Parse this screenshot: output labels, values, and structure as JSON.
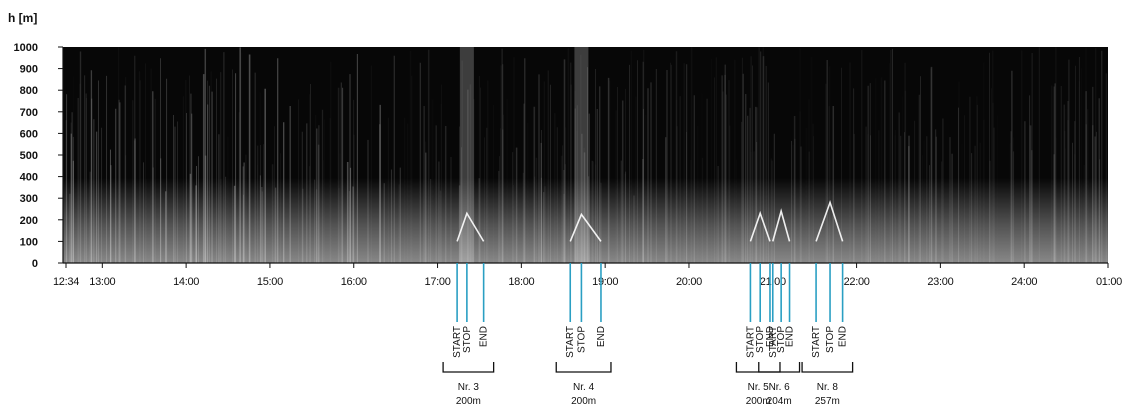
{
  "chart_data": {
    "type": "heatmap",
    "ylabel": "h [m]",
    "ylim": [
      0,
      1000
    ],
    "yticks": [
      "0",
      "100",
      "200",
      "300",
      "400",
      "500",
      "600",
      "700",
      "800",
      "900",
      "1000"
    ],
    "xticks": [
      {
        "label": "12:34",
        "t": 754
      },
      {
        "label": "13:00",
        "t": 780
      },
      {
        "label": "14:00",
        "t": 840
      },
      {
        "label": "15:00",
        "t": 900
      },
      {
        "label": "16:00",
        "t": 960
      },
      {
        "label": "17:00",
        "t": 1020
      },
      {
        "label": "18:00",
        "t": 1080
      },
      {
        "label": "19:00",
        "t": 1140
      },
      {
        "label": "20:00",
        "t": 1200
      },
      {
        "label": "21:00",
        "t": 1260
      },
      {
        "label": "22:00",
        "t": 1320
      },
      {
        "label": "23:00",
        "t": 1380
      },
      {
        "label": "24:00",
        "t": 1440
      },
      {
        "label": "01:00",
        "t": 1500
      }
    ],
    "xlim_minutes": [
      754,
      1500
    ],
    "event_colors": {
      "marker": "#2a9fc3",
      "triangle": "#ffffff",
      "image_bg": "#070707",
      "image_fg": "#ffffff"
    },
    "flights": [
      {
        "name": "Nr. 3",
        "altitude": "200m",
        "start": 1034,
        "stop": 1041,
        "end": 1053,
        "peak_h": 230
      },
      {
        "name": "Nr. 4",
        "altitude": "200m",
        "start": 1115,
        "stop": 1123,
        "end": 1137,
        "peak_h": 225
      },
      {
        "name": "Nr. 5",
        "altitude": "200m",
        "start": 1244,
        "stop": 1251,
        "end": 1258,
        "peak_h": 230
      },
      {
        "name": "Nr. 6",
        "altitude": "204m",
        "start": 1260,
        "stop": 1266,
        "end": 1272,
        "peak_h": 240
      },
      {
        "name": "Nr. 8",
        "altitude": "257m",
        "start": 1291,
        "stop": 1301,
        "end": 1310,
        "peak_h": 280
      }
    ],
    "event_labels": {
      "start": "START",
      "stop": "STOP",
      "end": "END"
    }
  }
}
